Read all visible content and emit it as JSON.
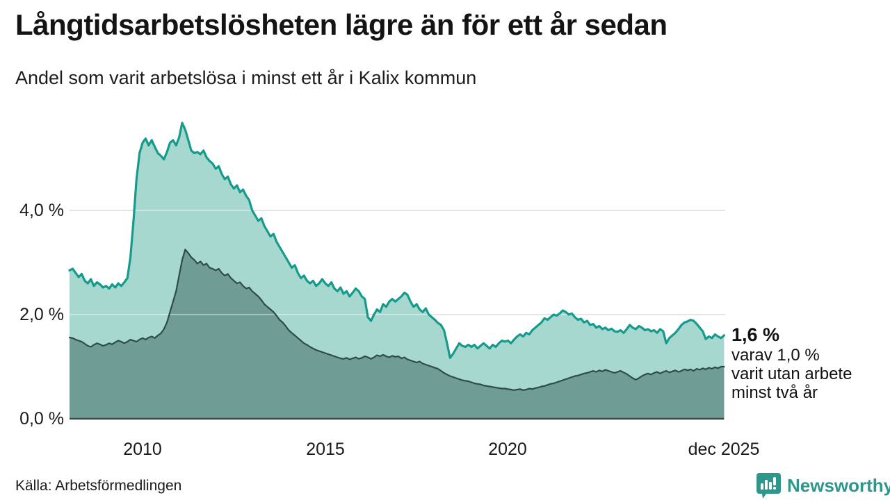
{
  "title": "Långtidsarbetslösheten lägre än för ett år sedan",
  "subtitle": "Andel som varit arbetslösa i minst ett år i Kalix kommun",
  "annotation": {
    "value_label": "1,6 %",
    "line2": "varav 1,0 %",
    "line3": "varit utan arbete",
    "line4": "minst två år"
  },
  "source": "Källa: Arbetsförmedlingen",
  "logo": {
    "name": "Newsworthy",
    "icon": "bar-chart-speech-bubble-icon",
    "color": "#2f968c"
  },
  "colors": {
    "line_total": "#169a8c",
    "fill_total": "#a6d8d0",
    "line_two_years": "#2e4b46",
    "fill_two_years": "#6f9d96",
    "gridline": "#d4d4d4",
    "axis_line": "#3f4a48",
    "text": "#1a1a1a"
  },
  "chart_data": {
    "type": "area",
    "title": "Långtidsarbetslösheten lägre än för ett år sedan",
    "subtitle": "Andel som varit arbetslösa i minst ett år i Kalix kommun",
    "x_unit": "month",
    "x_start": "2008-01",
    "x_end": "2025-12",
    "x_tick_labels": [
      "2010",
      "2015",
      "2020",
      "dec 2025"
    ],
    "x_tick_month_index": [
      24,
      84,
      144,
      215
    ],
    "y_ticks": [
      {
        "label": "0,0 %",
        "value": 0
      },
      {
        "label": "2,0 %",
        "value": 2
      },
      {
        "label": "4,0 %",
        "value": 4
      }
    ],
    "ylim": [
      0,
      5.84
    ],
    "grid": "horizontal",
    "legend_position": "none",
    "end_labels": {
      "total_latest": "1,6 %",
      "two_years_latest": "1,0 %"
    },
    "series": [
      {
        "name": "Arbetslösa minst ett år",
        "color": "#169a8c",
        "fill": "#a6d8d0",
        "values": [
          2.85,
          2.88,
          2.8,
          2.72,
          2.78,
          2.65,
          2.6,
          2.68,
          2.55,
          2.62,
          2.58,
          2.52,
          2.55,
          2.5,
          2.58,
          2.52,
          2.6,
          2.55,
          2.62,
          2.7,
          3.1,
          3.8,
          4.6,
          5.1,
          5.3,
          5.38,
          5.25,
          5.35,
          5.22,
          5.1,
          5.05,
          4.98,
          5.12,
          5.3,
          5.35,
          5.25,
          5.4,
          5.68,
          5.55,
          5.35,
          5.15,
          5.1,
          5.12,
          5.08,
          5.15,
          5.02,
          4.95,
          4.9,
          4.8,
          4.85,
          4.7,
          4.6,
          4.65,
          4.5,
          4.42,
          4.48,
          4.35,
          4.4,
          4.28,
          4.2,
          4.0,
          3.9,
          3.8,
          3.85,
          3.7,
          3.6,
          3.5,
          3.55,
          3.4,
          3.3,
          3.2,
          3.1,
          3.0,
          2.9,
          2.95,
          2.8,
          2.7,
          2.75,
          2.65,
          2.6,
          2.65,
          2.55,
          2.6,
          2.68,
          2.6,
          2.55,
          2.62,
          2.5,
          2.45,
          2.52,
          2.4,
          2.45,
          2.35,
          2.42,
          2.5,
          2.45,
          2.35,
          2.3,
          1.95,
          1.88,
          2.0,
          2.1,
          2.05,
          2.2,
          2.15,
          2.25,
          2.3,
          2.25,
          2.3,
          2.35,
          2.42,
          2.38,
          2.25,
          2.15,
          2.2,
          2.1,
          2.05,
          2.12,
          2.0,
          1.95,
          1.9,
          1.84,
          1.8,
          1.7,
          1.45,
          1.17,
          1.25,
          1.35,
          1.45,
          1.4,
          1.38,
          1.42,
          1.38,
          1.42,
          1.35,
          1.4,
          1.45,
          1.4,
          1.35,
          1.42,
          1.38,
          1.45,
          1.5,
          1.48,
          1.5,
          1.45,
          1.52,
          1.58,
          1.62,
          1.58,
          1.65,
          1.62,
          1.7,
          1.75,
          1.8,
          1.85,
          1.93,
          1.9,
          1.95,
          2.0,
          1.98,
          2.02,
          2.08,
          2.05,
          2.0,
          2.02,
          1.95,
          1.9,
          1.92,
          1.85,
          1.88,
          1.8,
          1.82,
          1.75,
          1.78,
          1.72,
          1.75,
          1.7,
          1.73,
          1.68,
          1.67,
          1.7,
          1.65,
          1.72,
          1.8,
          1.75,
          1.72,
          1.78,
          1.75,
          1.7,
          1.72,
          1.68,
          1.7,
          1.65,
          1.72,
          1.68,
          1.45,
          1.55,
          1.6,
          1.65,
          1.72,
          1.8,
          1.85,
          1.87,
          1.9,
          1.88,
          1.82,
          1.75,
          1.68,
          1.53,
          1.58,
          1.55,
          1.62,
          1.58,
          1.55,
          1.6
        ]
      },
      {
        "name": "Arbetslösa minst två år",
        "color": "#2e4b46",
        "fill": "#6f9d96",
        "values": [
          1.56,
          1.55,
          1.52,
          1.5,
          1.48,
          1.44,
          1.4,
          1.38,
          1.42,
          1.45,
          1.43,
          1.4,
          1.42,
          1.45,
          1.43,
          1.47,
          1.5,
          1.48,
          1.45,
          1.48,
          1.52,
          1.5,
          1.48,
          1.52,
          1.55,
          1.52,
          1.56,
          1.58,
          1.55,
          1.6,
          1.64,
          1.72,
          1.85,
          2.05,
          2.25,
          2.45,
          2.75,
          3.05,
          3.25,
          3.18,
          3.1,
          3.05,
          2.98,
          3.02,
          2.95,
          2.98,
          2.9,
          2.88,
          2.85,
          2.88,
          2.8,
          2.75,
          2.78,
          2.7,
          2.65,
          2.6,
          2.62,
          2.55,
          2.5,
          2.52,
          2.45,
          2.4,
          2.35,
          2.28,
          2.2,
          2.15,
          2.1,
          2.05,
          1.98,
          1.9,
          1.85,
          1.78,
          1.7,
          1.65,
          1.6,
          1.55,
          1.5,
          1.45,
          1.42,
          1.38,
          1.35,
          1.32,
          1.3,
          1.28,
          1.26,
          1.24,
          1.22,
          1.2,
          1.18,
          1.16,
          1.15,
          1.17,
          1.14,
          1.16,
          1.18,
          1.15,
          1.17,
          1.2,
          1.18,
          1.15,
          1.18,
          1.22,
          1.2,
          1.23,
          1.2,
          1.18,
          1.21,
          1.19,
          1.2,
          1.16,
          1.18,
          1.14,
          1.12,
          1.1,
          1.08,
          1.1,
          1.06,
          1.04,
          1.02,
          1.0,
          0.98,
          0.96,
          0.92,
          0.88,
          0.85,
          0.82,
          0.8,
          0.78,
          0.76,
          0.74,
          0.73,
          0.72,
          0.7,
          0.68,
          0.67,
          0.66,
          0.64,
          0.63,
          0.62,
          0.61,
          0.6,
          0.59,
          0.58,
          0.58,
          0.57,
          0.56,
          0.55,
          0.56,
          0.57,
          0.55,
          0.56,
          0.58,
          0.57,
          0.59,
          0.6,
          0.62,
          0.63,
          0.65,
          0.67,
          0.68,
          0.7,
          0.72,
          0.74,
          0.76,
          0.78,
          0.8,
          0.82,
          0.83,
          0.85,
          0.87,
          0.88,
          0.9,
          0.92,
          0.9,
          0.93,
          0.91,
          0.94,
          0.92,
          0.9,
          0.88,
          0.9,
          0.92,
          0.89,
          0.86,
          0.82,
          0.78,
          0.75,
          0.78,
          0.82,
          0.85,
          0.87,
          0.85,
          0.88,
          0.9,
          0.87,
          0.9,
          0.92,
          0.89,
          0.91,
          0.93,
          0.9,
          0.92,
          0.95,
          0.93,
          0.95,
          0.92,
          0.96,
          0.94,
          0.97,
          0.95,
          0.98,
          0.96,
          0.99,
          0.97,
          1.0,
          1.0
        ]
      }
    ]
  }
}
